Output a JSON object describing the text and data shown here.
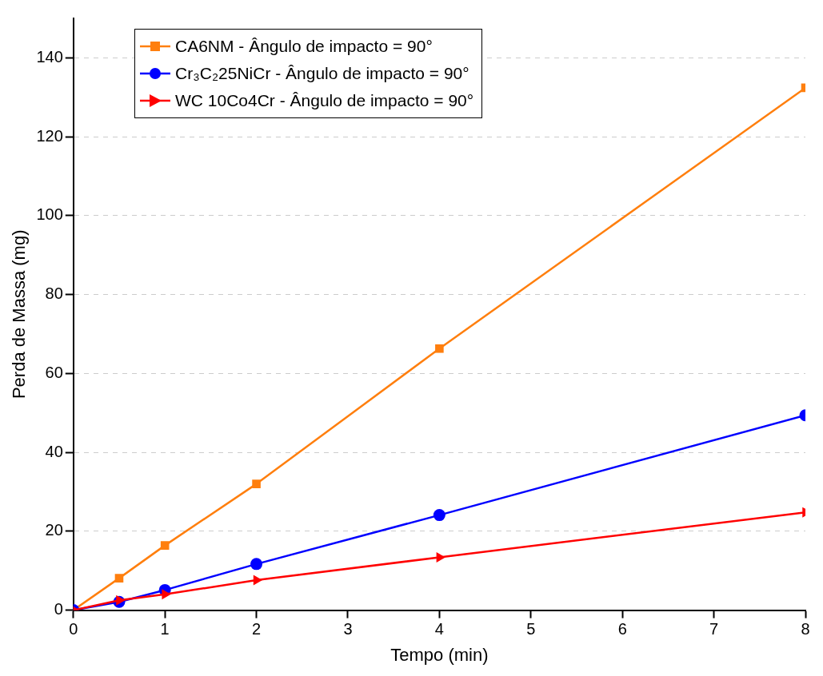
{
  "chart_data": {
    "type": "line",
    "xlabel": "Tempo (min)",
    "ylabel": "Perda de Massa (mg)",
    "x": [
      0,
      0.5,
      1,
      2,
      4,
      8
    ],
    "xlim": [
      0,
      8
    ],
    "xticks": [
      0,
      1,
      2,
      3,
      4,
      5,
      6,
      7,
      8
    ],
    "ylim": [
      0,
      150
    ],
    "yticks": [
      0,
      20,
      40,
      60,
      80,
      100,
      120,
      140
    ],
    "grid": "y",
    "legend": "top left",
    "line_style": "solid",
    "series": [
      {
        "name": "CA6NM - Ângulo de impacto = 90°",
        "color": "#ff7f0e",
        "marker": "square",
        "values": [
          0,
          8.1,
          16.4,
          32,
          66.3,
          132.4
        ]
      },
      {
        "name": "Cr₃C₂25NiCr - Ângulo de impacto = 90°",
        "color": "#0000ff",
        "marker": "circle",
        "values": [
          0,
          2.1,
          5.1,
          11.7,
          24.1,
          49.4
        ]
      },
      {
        "name": "WC 10Co4Cr - Ângulo de impacto = 90°",
        "color": "#ff0000",
        "marker": "triangle",
        "values": [
          0,
          2.5,
          4,
          7.6,
          13.4,
          24.8
        ]
      }
    ]
  }
}
